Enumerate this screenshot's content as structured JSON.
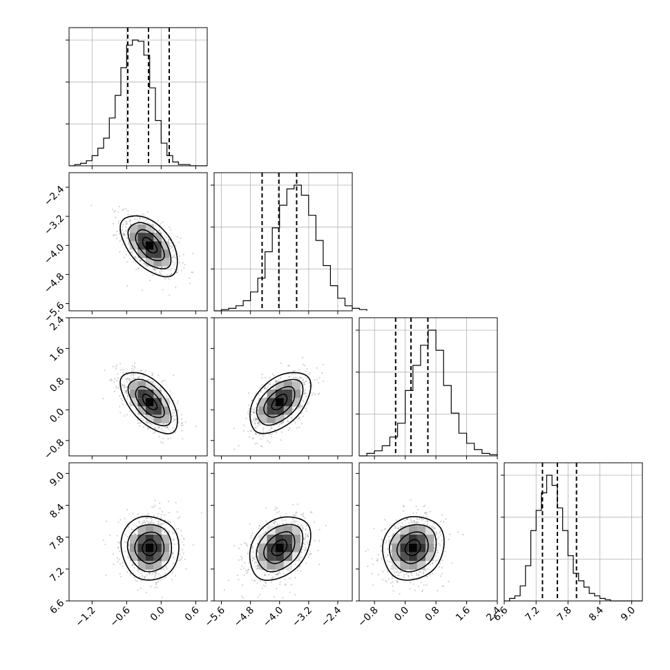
{
  "chart_data": {
    "type": "corner",
    "parameters": [
      {
        "index": 0,
        "mean": -0.2,
        "sd": 0.25,
        "range": [
          -1.6,
          0.8
        ],
        "ticks": [
          -1.2,
          -0.6,
          0.0,
          0.6
        ],
        "tick_labels": [
          "−1.2",
          "−0.6",
          "0.0",
          "0.6"
        ],
        "quantiles": [
          -0.58,
          -0.22,
          0.14
        ]
      },
      {
        "index": 1,
        "mean": -4.0,
        "sd": 0.42,
        "range": [
          -5.8,
          -2.0
        ],
        "ticks": [
          -5.6,
          -4.8,
          -4.0,
          -3.2,
          -2.4
        ],
        "tick_labels": [
          "−5.6",
          "−4.8",
          "−4.0",
          "−3.2",
          "−2.4"
        ],
        "quantiles": [
          -4.48,
          -4.02,
          -3.53
        ]
      },
      {
        "index": 2,
        "mean": 0.2,
        "sd": 0.4,
        "range": [
          -1.2,
          2.4
        ],
        "ticks": [
          -0.8,
          0.0,
          0.8,
          1.6,
          2.4
        ],
        "tick_labels": [
          "−0.8",
          "0.0",
          "0.8",
          "1.6",
          "2.4"
        ],
        "quantiles": [
          -0.25,
          0.15,
          0.59
        ]
      },
      {
        "index": 3,
        "mean": 7.6,
        "sd": 0.3,
        "range": [
          6.6,
          9.2
        ],
        "ticks": [
          6.6,
          7.2,
          7.8,
          8.4,
          9.0
        ],
        "tick_labels": [
          "6.6",
          "7.2",
          "7.8",
          "8.4",
          "9.0"
        ],
        "quantiles": [
          7.32,
          7.6,
          7.96
        ]
      }
    ],
    "histograms": [
      {
        "param": 0,
        "bin_edges_start": -1.6,
        "bin_width": 0.1,
        "counts": [
          0,
          1,
          2,
          4,
          8,
          14,
          22,
          38,
          56,
          78,
          96,
          100,
          99,
          88,
          62,
          36,
          18,
          8,
          3,
          1,
          1,
          0,
          0,
          0
        ]
      },
      {
        "param": 1,
        "bin_edges_start": -5.8,
        "bin_width": 0.2,
        "counts": [
          0,
          1,
          2,
          4,
          8,
          15,
          26,
          47,
          66,
          84,
          97,
          100,
          92,
          76,
          56,
          36,
          20,
          10,
          4,
          2,
          1
        ]
      },
      {
        "param": 2,
        "bin_edges_start": -1.2,
        "bin_width": 0.2,
        "counts": [
          0,
          2,
          4,
          8,
          15,
          26,
          52,
          72,
          88,
          100,
          84,
          56,
          34,
          18,
          10,
          5,
          2,
          1
        ]
      },
      {
        "param": 3,
        "bin_edges_start": 6.6,
        "bin_width": 0.1,
        "counts": [
          0,
          2,
          4,
          12,
          28,
          56,
          72,
          86,
          100,
          92,
          74,
          56,
          36,
          22,
          16,
          11,
          6,
          4,
          2,
          1,
          0,
          0,
          0,
          0,
          0,
          0
        ]
      }
    ],
    "correlations": [
      {
        "row": 1,
        "col": 0,
        "rho": -0.55
      },
      {
        "row": 2,
        "col": 0,
        "rho": -0.6
      },
      {
        "row": 2,
        "col": 1,
        "rho": 0.5
      },
      {
        "row": 3,
        "col": 0,
        "rho": 0.0
      },
      {
        "row": 3,
        "col": 1,
        "rho": 0.35
      },
      {
        "row": 3,
        "col": 2,
        "rho": 0.15
      }
    ],
    "contour_levels_sigma": [
      0.5,
      1.0,
      1.5,
      2.0
    ],
    "grid": true
  }
}
